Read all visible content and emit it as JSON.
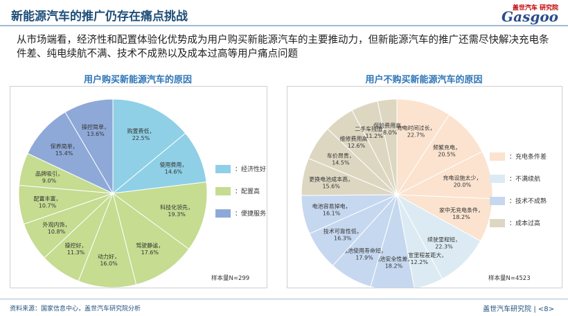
{
  "header": {
    "title": "新能源汽车的推广仍存在痛点挑战"
  },
  "logo": {
    "tag": "盖世汽车 研究院",
    "word": "Gasgoo"
  },
  "intro": "从市场端看，经济性和配置体验化优势成为用户购买新能源汽车的主要推动力，但新能源汽车的推广还需尽快解决充电条件差、纯电续航不满、技术不成熟以及成本过高等用户痛点问题",
  "left_panel": {
    "subtitle": "用户购买新能源汽车的原因",
    "sample": "样本量N=299"
  },
  "right_panel": {
    "subtitle": "用户不购买新能源汽车的原因",
    "sample": "样本量N=4523"
  },
  "footer": {
    "source": "资料来源：国家信息中心，盖世汽车研究院分析",
    "brand": "盖世汽车研究院",
    "page": "<8>"
  },
  "chart_data": [
    {
      "type": "pie",
      "title": "用户购买新能源汽车的原因",
      "slices": [
        {
          "label": "购置费低",
          "value": 22.5,
          "group": "经济性好"
        },
        {
          "label": "使用费用",
          "value": 14.6,
          "group": "经济性好"
        },
        {
          "label": "科技化领先",
          "value": 19.3,
          "group": "配置高"
        },
        {
          "label": "驾驶静谧",
          "value": 17.6,
          "group": "配置高"
        },
        {
          "label": "动力好",
          "value": 16.0,
          "group": "配置高"
        },
        {
          "label": "操控好",
          "value": 11.3,
          "group": "配置高"
        },
        {
          "label": "外观内饰",
          "value": 10.8,
          "group": "配置高"
        },
        {
          "label": "配置丰富",
          "value": 10.7,
          "group": "配置高"
        },
        {
          "label": "品牌吸引",
          "value": 9.0,
          "group": "配置高"
        },
        {
          "label": "保养简单",
          "value": 15.4,
          "group": "便捷服务"
        },
        {
          "label": "操控简单",
          "value": 13.6,
          "group": "便捷服务"
        }
      ],
      "legend": [
        {
          "label": "：经济性好",
          "color": "#8fd0e6"
        },
        {
          "label": "：配置高",
          "color": "#c5dc91"
        },
        {
          "label": "：便捷服务",
          "color": "#8ea9d8"
        }
      ],
      "legend_position": "right"
    },
    {
      "type": "pie",
      "title": "用户不购买新能源汽车的原因",
      "slices": [
        {
          "label": "充电时间过长",
          "value": 22.7,
          "group": "充电条件差"
        },
        {
          "label": "频繁充电",
          "value": 20.5,
          "group": "充电条件差"
        },
        {
          "label": "充电设施太少",
          "value": 20.0,
          "group": "充电条件差"
        },
        {
          "label": "家中无充电条件",
          "value": 18.2,
          "group": "充电条件差"
        },
        {
          "label": "续驶里程短",
          "value": 22.3,
          "group": "不满续航"
        },
        {
          "label": "实际官宣里程差距大",
          "value": 12.2,
          "group": "不满续航"
        },
        {
          "label": "电池安全性差",
          "value": 18.2,
          "group": "技术不成熟"
        },
        {
          "label": "电池使用寿命短",
          "value": 17.9,
          "group": "技术不成熟"
        },
        {
          "label": "技术可靠性低",
          "value": 16.3,
          "group": "技术不成熟"
        },
        {
          "label": "电池容易掉电",
          "value": 16.1,
          "group": "技术不成熟"
        },
        {
          "label": "更换电池成本高",
          "value": 15.6,
          "group": "成本过高"
        },
        {
          "label": "车价昂贵",
          "value": 14.5,
          "group": "成本过高"
        },
        {
          "label": "维修费用高",
          "value": 12.6,
          "group": "成本过高"
        },
        {
          "label": "二手车残值低",
          "value": 11.2,
          "group": "成本过高"
        },
        {
          "label": "保险费用高",
          "value": 8.0,
          "group": "成本过高"
        }
      ],
      "legend": [
        {
          "label": "：充电条件差",
          "color": "#fbe3cf"
        },
        {
          "label": "：不满续航",
          "color": "#dcebf3"
        },
        {
          "label": "：技术不成熟",
          "color": "#c6d8ef"
        },
        {
          "label": "：成本过高",
          "color": "#ddd7c2"
        }
      ],
      "legend_position": "right"
    }
  ]
}
